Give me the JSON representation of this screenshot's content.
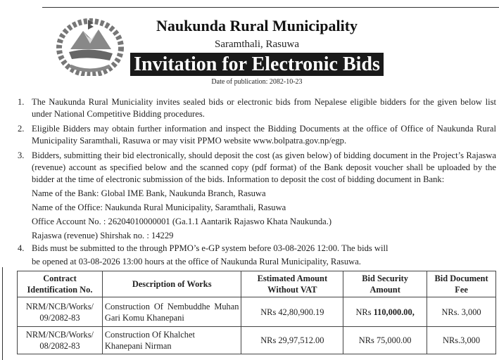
{
  "header": {
    "title": "Naukunda Rural Municipality",
    "subtitle": "Saramthali, Rasuwa",
    "banner": "Invitation for Electronic Bids",
    "date": "Date of publication: 2082-10-23",
    "logo": "Nepal government emblem"
  },
  "items": [
    {
      "num": "1.",
      "text": "The Naukunda Rural Municiality invites sealed bids or electronic bids from Nepalese eligible bidders for the given below list under National Competitive Bidding procedures."
    },
    {
      "num": "2.",
      "text": "Eligible Bidders may obtain further information and inspect the Bidding Documents at the office of Office of Naukunda Rural Municipality Saramthali, Rasuwa or may visit PPMO website www.bolpatra.gov.np/egp."
    },
    {
      "num": "3.",
      "text": "Bidders, submitting their bid electronically, should deposit the cost (as given below) of bidding document in the Project’s Rajaswa (revenue) account as specified below and the scanned copy (pdf format) of the Bank deposit voucher shall be uploaded by the bidder at the time of electronic submission of the bids. Information to deposit the cost of bidding document in Bank:"
    },
    {
      "num": "4.",
      "text": "Bids must be submitted to the through PPMO’s e-GP system before 03-08-2026 12:00. The bids will"
    }
  ],
  "bank_info": [
    "Name of the Bank: Global IME Bank, Naukunda Branch, Rasuwa",
    "Name of the Office: Naukunda Rural Municipality, Saramthali, Rasuwa",
    "Office Account No. : 26204010000001 (Ga.1.1 Aantarik Rajaswo Khata Naukunda.)",
    "Rajaswa (revenue) Shirshak no. : 14229"
  ],
  "item4_line2": "be opened at 03-08-2026 13:00 hours at the office of Naukunda Rural Municipality, Rasuwa.",
  "table": {
    "headers": [
      [
        "Contract",
        "Identification No."
      ],
      [
        "Description of Works"
      ],
      [
        "Estimated Amount",
        "Without VAT"
      ],
      [
        "Bid Security",
        "Amount"
      ],
      [
        "Bid Document",
        "Fee"
      ]
    ],
    "rows": [
      {
        "id": [
          "NRM/NCB/Works/",
          "09/2082-83"
        ],
        "desc": [
          "Construction Of Nembuddhe",
          "Muhan Gari Komu Khanepani"
        ],
        "estimate": "NRs 42,80,900.19",
        "security_prefix": "NRs ",
        "security": "110,000.00,",
        "fee": "NRs. 3,000"
      },
      {
        "id": [
          "NRM/NCB/Works/",
          "08/2082-83"
        ],
        "desc": [
          "Construction Of Khalchet",
          "Khanepani Nirman"
        ],
        "estimate": "NRs 29,97,512.00",
        "security_prefix": "NRs ",
        "security": "75,000.00",
        "fee": "NRs.3,000"
      }
    ]
  }
}
